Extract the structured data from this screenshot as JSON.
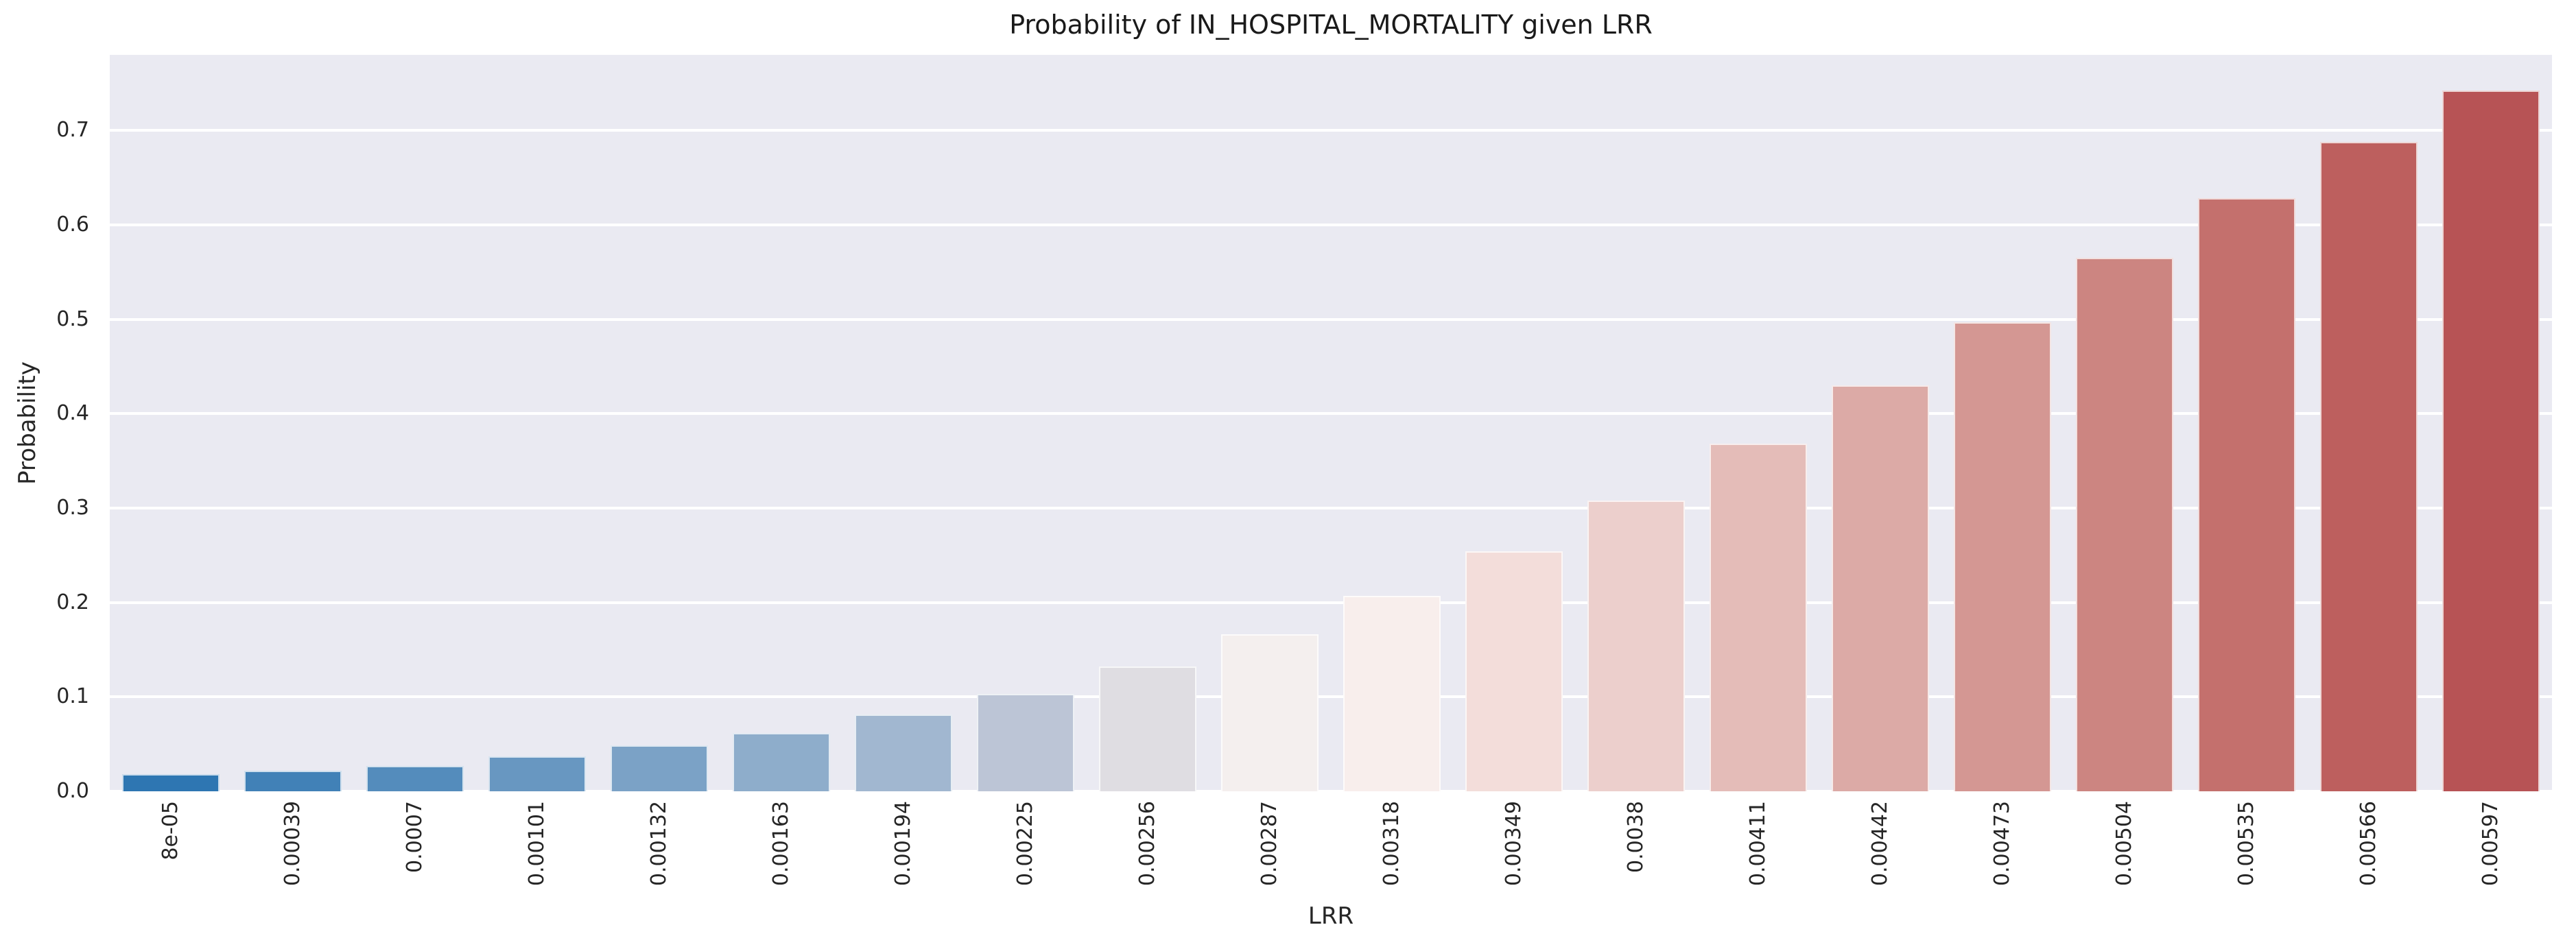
{
  "chart_data": {
    "type": "bar",
    "title": "Probability of IN_HOSPITAL_MORTALITY given LRR",
    "xlabel": "LRR",
    "ylabel": "Probability",
    "categories": [
      "8e-05",
      "0.00039",
      "0.0007",
      "0.00101",
      "0.00132",
      "0.00163",
      "0.00194",
      "0.00225",
      "0.00256",
      "0.00287",
      "0.00318",
      "0.00349",
      "0.0038",
      "0.00411",
      "0.00442",
      "0.00473",
      "0.00504",
      "0.00535",
      "0.00566",
      "0.00597"
    ],
    "values": [
      0.018,
      0.022,
      0.027,
      0.037,
      0.049,
      0.062,
      0.081,
      0.103,
      0.132,
      0.166,
      0.207,
      0.254,
      0.308,
      0.368,
      0.43,
      0.497,
      0.565,
      0.628,
      0.688,
      0.742
    ],
    "bar_colors": [
      "#2e76b2",
      "#4181b7",
      "#548cbc",
      "#6897c1",
      "#7ba2c6",
      "#8eadcb",
      "#a1b7d0",
      "#bcc5d6",
      "#dfdde2",
      "#f4efee",
      "#f8eeec",
      "#f3ddda",
      "#eccfcc",
      "#e4bcb8",
      "#dcaaa6",
      "#d49793",
      "#cc8581",
      "#c4706d",
      "#bd5f5e",
      "#b75355"
    ],
    "ytick_labels": [
      "0.0",
      "0.1",
      "0.2",
      "0.3",
      "0.4",
      "0.5",
      "0.6",
      "0.7"
    ],
    "ytick_values": [
      0.0,
      0.1,
      0.2,
      0.3,
      0.4,
      0.5,
      0.6,
      0.7
    ],
    "ylim": [
      0,
      0.78
    ],
    "grid": true,
    "legend": "none",
    "colors": {
      "figure_background": "#ffffff",
      "axes_background": "#eaeaf2",
      "gridline": "#ffffff",
      "text": "#262626"
    }
  }
}
